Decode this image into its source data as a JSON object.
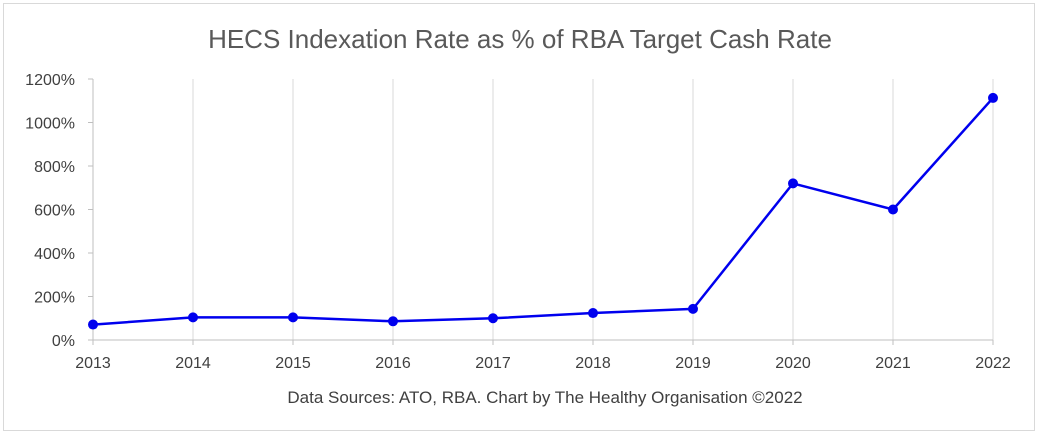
{
  "chart_data": {
    "type": "line",
    "title": "HECS Indexation Rate as % of RBA Target Cash Rate",
    "footer": "Data Sources: ATO, RBA. Chart by The Healthy Organisation ©2022",
    "x": [
      "2013",
      "2014",
      "2015",
      "2016",
      "2017",
      "2018",
      "2019",
      "2020",
      "2021",
      "2022"
    ],
    "series": [
      {
        "values": [
          71,
          104,
          104,
          86,
          100,
          124,
          143,
          720,
          600,
          1113
        ]
      }
    ],
    "ylim": [
      0,
      1200
    ],
    "yticks": [
      0,
      200,
      400,
      600,
      800,
      1000,
      1200
    ],
    "ytick_labels": [
      "0%",
      "200%",
      "400%",
      "600%",
      "800%",
      "1000%",
      "1200%"
    ],
    "grid": "vertical",
    "colors": {
      "line": "#0000ee",
      "grid": "#d9d9d9",
      "axis": "#bfbfbf"
    }
  }
}
